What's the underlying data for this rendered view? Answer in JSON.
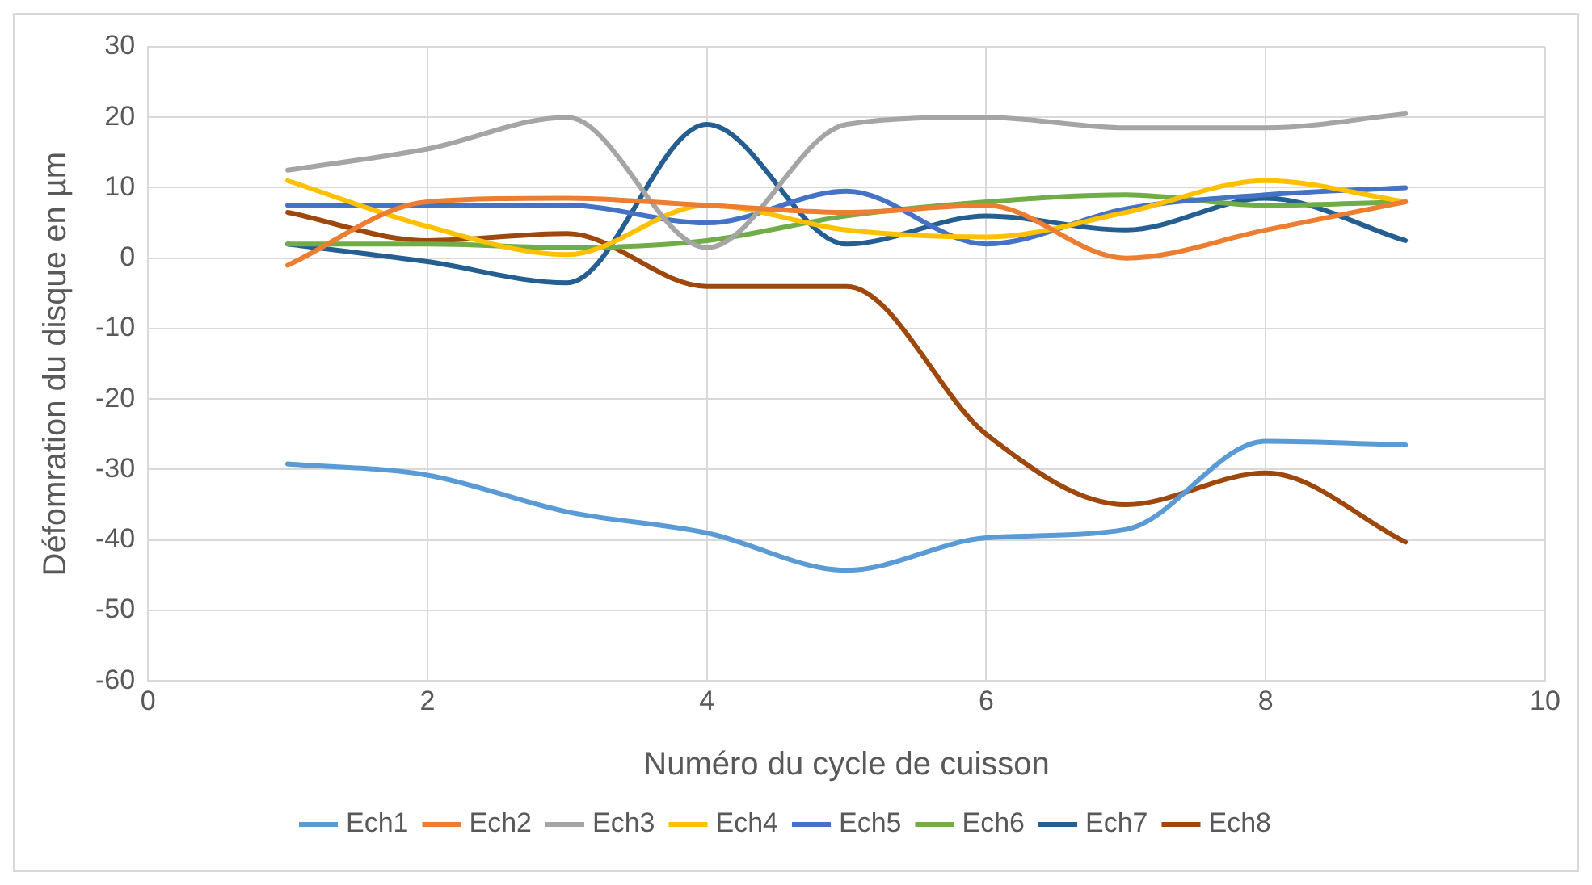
{
  "chart_data": {
    "type": "line",
    "xlabel": "Numéro du cycle de cuisson",
    "ylabel": "Défomration du disque en µm",
    "x": [
      1,
      2,
      3,
      4,
      5,
      6,
      7,
      8,
      9
    ],
    "xlim": [
      0,
      10
    ],
    "xticks": [
      0,
      2,
      4,
      6,
      8,
      10
    ],
    "ylim": [
      -60,
      30
    ],
    "yticks": [
      -60,
      -50,
      -40,
      -30,
      -20,
      -10,
      0,
      10,
      20,
      30
    ],
    "grid": true,
    "legend": "bottom",
    "marker": "none",
    "series": [
      {
        "name": "Ech1",
        "color": "#5b9bd5",
        "values": [
          -29.2,
          -30.8,
          -36,
          -39,
          -44.3,
          -39.7,
          -38.5,
          -26,
          -26.5
        ]
      },
      {
        "name": "Ech2",
        "color": "#ed7d31",
        "values": [
          -1,
          8,
          8.5,
          7.5,
          6.5,
          7.5,
          0,
          4,
          8
        ]
      },
      {
        "name": "Ech3",
        "color": "#a5a5a5",
        "values": [
          12.5,
          15.5,
          20,
          1.5,
          19,
          20,
          18.5,
          18.5,
          20.5
        ]
      },
      {
        "name": "Ech4",
        "color": "#ffc000",
        "values": [
          11,
          4.5,
          0.5,
          7.5,
          4,
          3,
          6.5,
          11,
          8
        ]
      },
      {
        "name": "Ech5",
        "color": "#4472c4",
        "values": [
          7.5,
          7.5,
          7.5,
          5,
          9.5,
          2,
          7,
          9,
          10
        ]
      },
      {
        "name": "Ech6",
        "color": "#70ad47",
        "values": [
          2,
          2,
          1.5,
          2.5,
          6,
          8,
          9,
          7.5,
          8
        ]
      },
      {
        "name": "Ech7",
        "color": "#255e91",
        "values": [
          2,
          -0.5,
          -3.5,
          19,
          2,
          6,
          4,
          8.5,
          2.5
        ]
      },
      {
        "name": "Ech8",
        "color": "#9e480e",
        "values": [
          6.5,
          2.5,
          3.5,
          -4,
          -4,
          -25,
          -35,
          -30.5,
          -40.3
        ]
      }
    ]
  }
}
